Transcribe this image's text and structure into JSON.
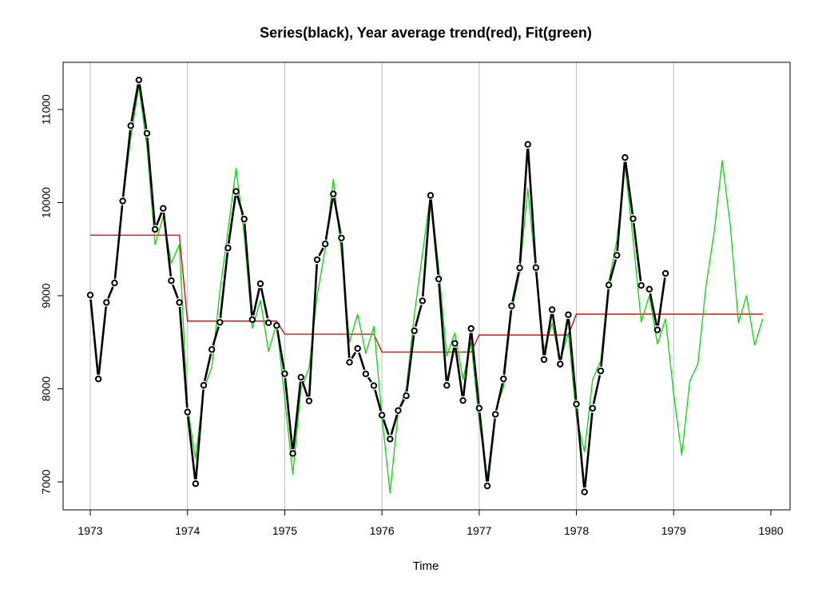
{
  "chart_data": {
    "type": "line",
    "title": "Series(black), Year average trend(red), Fit(green)",
    "xlabel": "Time",
    "ylabel": "",
    "xlim": [
      1973,
      1980
    ],
    "ylim": [
      6700,
      11500
    ],
    "xticks": [
      1973,
      1974,
      1975,
      1976,
      1977,
      1978,
      1979,
      1980
    ],
    "yticks": [
      7000,
      8000,
      9000,
      10000,
      11000
    ],
    "grid": "vertical",
    "colors": {
      "series": "#000000",
      "trend": "#d40000",
      "fit": "#00dd00",
      "grid": "#bebebe"
    },
    "series": [
      {
        "name": "Series",
        "color": "#000000",
        "start": 1973,
        "frequency": 12,
        "values": [
          9007,
          8106,
          8928,
          9137,
          10017,
          10826,
          11317,
          10744,
          9713,
          9938,
          9161,
          8927,
          7750,
          6981,
          8038,
          8422,
          8714,
          9512,
          10120,
          9823,
          8743,
          9129,
          8710,
          8680,
          8162,
          7306,
          8124,
          7870,
          9387,
          9556,
          10093,
          9620,
          8285,
          8433,
          8160,
          8034,
          7717,
          7461,
          7767,
          7925,
          8623,
          8945,
          10078,
          9179,
          8037,
          8488,
          7874,
          8647,
          7792,
          6957,
          7726,
          8106,
          8890,
          9299,
          10625,
          9302,
          8314,
          8850,
          8265,
          8796,
          7836,
          6892,
          7791,
          8192,
          9115,
          9434,
          10484,
          9827,
          9110,
          9070,
          8633,
          9240
        ]
      },
      {
        "name": "Year average trend",
        "color": "#d40000",
        "start": 1973,
        "frequency": 12,
        "values": [
          9650,
          9650,
          9650,
          9650,
          9650,
          9650,
          9650,
          9650,
          9650,
          9650,
          9650,
          9650,
          8727,
          8727,
          8727,
          8727,
          8727,
          8727,
          8727,
          8727,
          8727,
          8727,
          8727,
          8727,
          8587,
          8587,
          8587,
          8587,
          8587,
          8587,
          8587,
          8587,
          8587,
          8587,
          8587,
          8587,
          8395,
          8395,
          8395,
          8395,
          8395,
          8395,
          8395,
          8395,
          8395,
          8395,
          8395,
          8395,
          8578,
          8578,
          8578,
          8578,
          8578,
          8578,
          8578,
          8578,
          8578,
          8578,
          8578,
          8578,
          8802,
          8802,
          8802,
          8802,
          8802,
          8802,
          8802,
          8802,
          8802,
          8802,
          8802,
          8802,
          8802,
          8802,
          8802,
          8802,
          8802,
          8802,
          8802,
          8802,
          8802,
          8802,
          8802,
          8802
        ]
      },
      {
        "name": "Fit",
        "color": "#00dd00",
        "start": 1973,
        "frequency": 12,
        "values": [
          8950,
          8150,
          8900,
          9150,
          10000,
          10700,
          11250,
          10600,
          9550,
          9850,
          9350,
          9550,
          7800,
          7250,
          8000,
          8230,
          9050,
          9700,
          10370,
          9650,
          8650,
          8950,
          8400,
          8700,
          7900,
          7080,
          8000,
          8220,
          9000,
          9500,
          10250,
          9450,
          8500,
          8800,
          8380,
          8670,
          7700,
          6880,
          7750,
          8000,
          8800,
          9450,
          10100,
          9300,
          8350,
          8600,
          8100,
          8500,
          7650,
          7050,
          7750,
          8020,
          8830,
          9250,
          10150,
          9250,
          8420,
          8700,
          8300,
          8600,
          7700,
          7320,
          8100,
          8300,
          9150,
          9600,
          10400,
          9600,
          8720,
          9000,
          8480,
          8750,
          7950,
          7290,
          8080,
          8270,
          9110,
          9680,
          10450,
          9750,
          8710,
          9000,
          8470,
          8750
        ]
      }
    ]
  }
}
